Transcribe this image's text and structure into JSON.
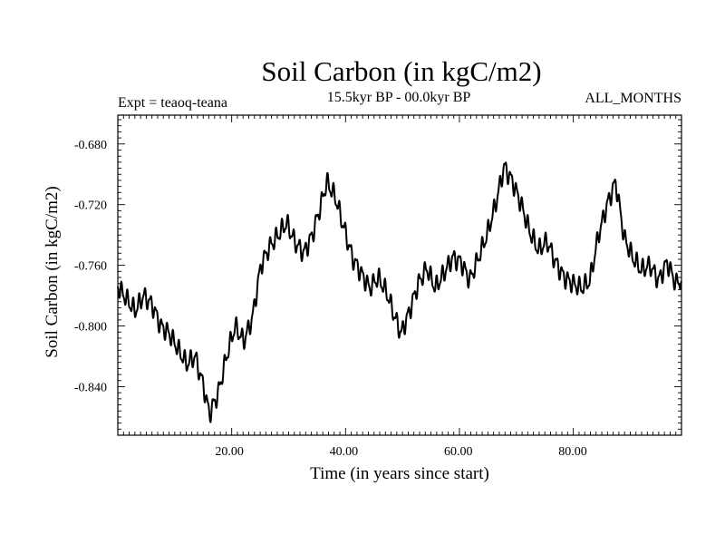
{
  "chart_data": {
    "type": "line",
    "title": "Soil Carbon (in kgC/m2)",
    "subtitle_left": "Expt = teaoq-teana",
    "subtitle_center": "15.5kyr BP - 00.0kyr BP",
    "subtitle_right": "ALL_MONTHS",
    "xlabel": "Time (in years since start)",
    "ylabel": "Soil Carbon (in kgC/m2)",
    "xlim": [
      0.5,
      99
    ],
    "ylim": [
      -0.872,
      -0.661
    ],
    "xticks": [
      20,
      40,
      60,
      80
    ],
    "xtick_labels": [
      "20.00",
      "40.00",
      "60.00",
      "80.00"
    ],
    "yticks": [
      -0.84,
      -0.8,
      -0.76,
      -0.72,
      -0.68
    ],
    "ytick_labels": [
      "-0.840",
      "-0.800",
      "-0.760",
      "-0.720",
      "-0.680"
    ],
    "series": [
      {
        "name": "Soil Carbon",
        "color": "#000000",
        "x": [
          0.5,
          2,
          3.5,
          5,
          6.5,
          8,
          9.5,
          11,
          12.5,
          14,
          15.5,
          16.5,
          18,
          19.5,
          21,
          22.5,
          24,
          25.5,
          27,
          28.5,
          30,
          31.5,
          33,
          34.5,
          36,
          37,
          38.5,
          40,
          41.5,
          43,
          44.5,
          46,
          47.5,
          49,
          50,
          51.5,
          53,
          54.5,
          56,
          57.5,
          59,
          60.5,
          62,
          63.5,
          65,
          66.5,
          68,
          69.5,
          71,
          72.5,
          74,
          75.5,
          77,
          78.5,
          80,
          81.5,
          83,
          84.5,
          86,
          87.5,
          89,
          90.5,
          92,
          93.5,
          95,
          96.5,
          98,
          99
        ],
        "y": [
          -0.774,
          -0.782,
          -0.79,
          -0.78,
          -0.786,
          -0.8,
          -0.805,
          -0.815,
          -0.825,
          -0.82,
          -0.84,
          -0.858,
          -0.845,
          -0.82,
          -0.8,
          -0.81,
          -0.795,
          -0.76,
          -0.748,
          -0.74,
          -0.732,
          -0.745,
          -0.752,
          -0.74,
          -0.72,
          -0.705,
          -0.715,
          -0.735,
          -0.755,
          -0.765,
          -0.775,
          -0.768,
          -0.778,
          -0.795,
          -0.805,
          -0.79,
          -0.772,
          -0.762,
          -0.775,
          -0.765,
          -0.755,
          -0.758,
          -0.77,
          -0.755,
          -0.74,
          -0.72,
          -0.695,
          -0.705,
          -0.72,
          -0.738,
          -0.75,
          -0.744,
          -0.758,
          -0.768,
          -0.772,
          -0.775,
          -0.77,
          -0.74,
          -0.72,
          -0.705,
          -0.742,
          -0.755,
          -0.763,
          -0.76,
          -0.77,
          -0.758,
          -0.772,
          -0.77
        ]
      }
    ]
  }
}
